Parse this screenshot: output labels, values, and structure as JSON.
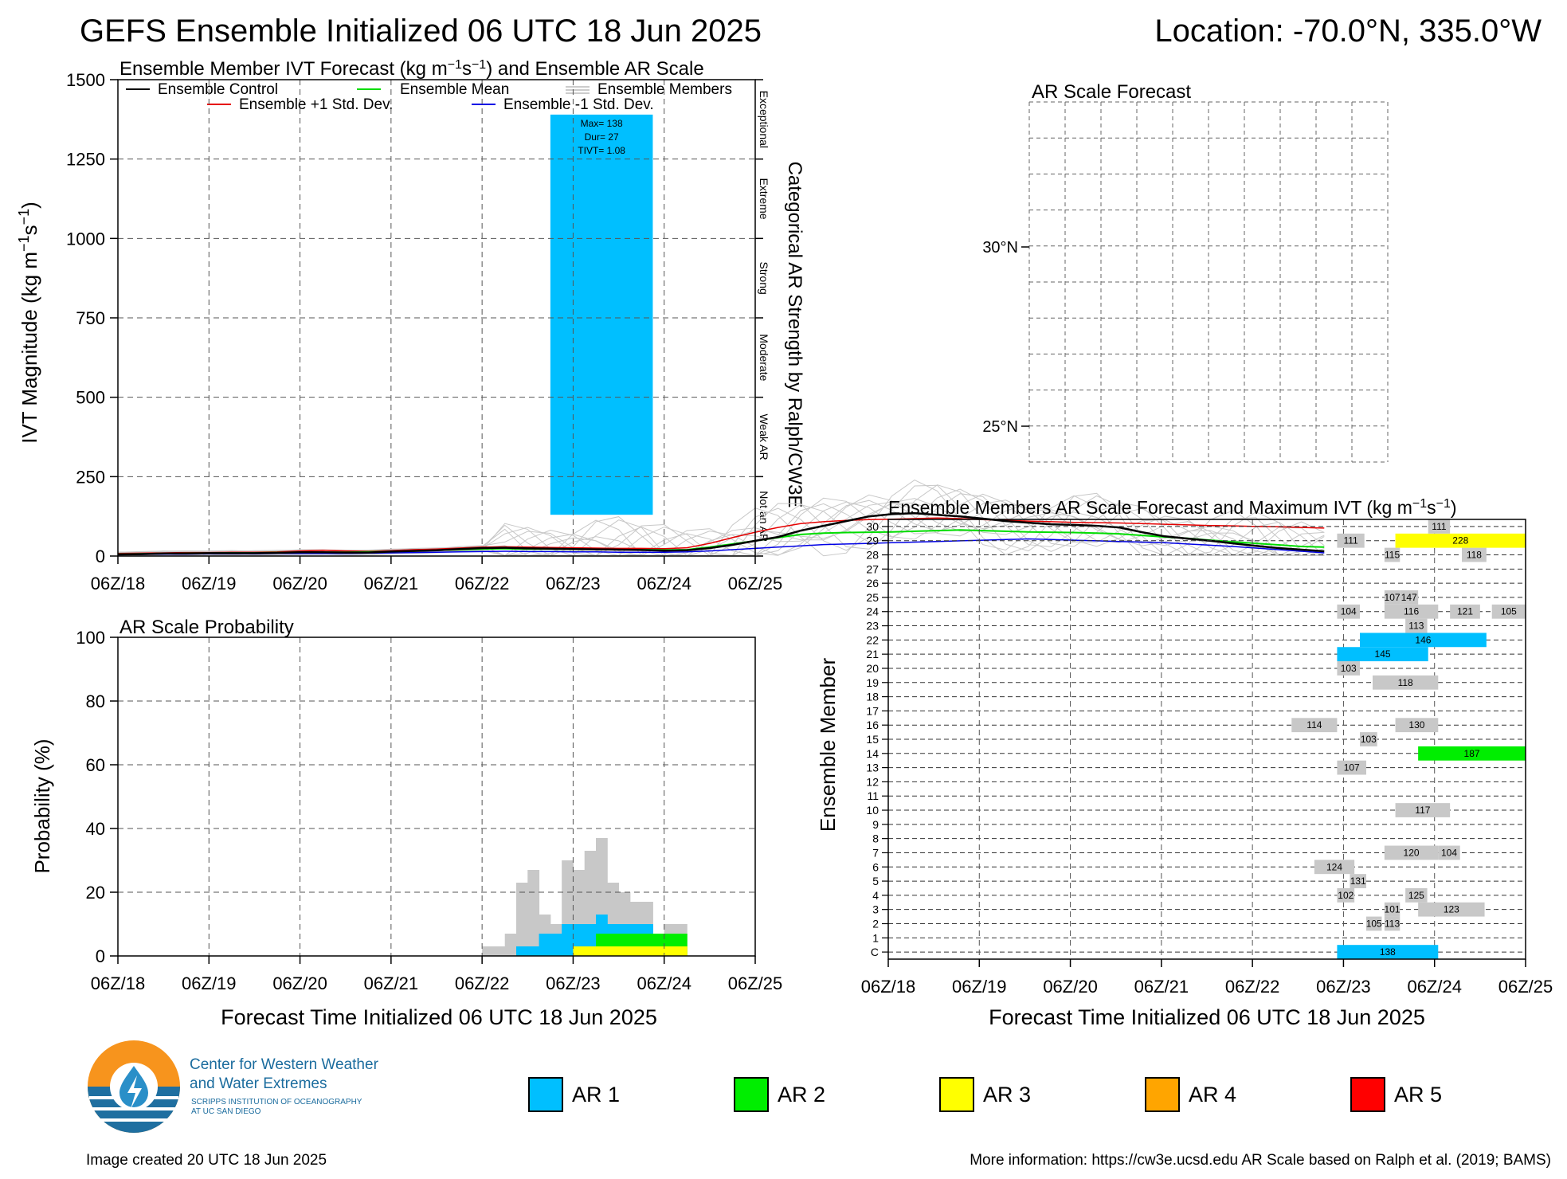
{
  "header": {
    "title": "GEFS Ensemble Initialized 06 UTC 18 Jun 2025",
    "location": "Location: -70.0°N, 335.0°W"
  },
  "colors": {
    "ar1": "#00bfff",
    "ar2": "#00ee00",
    "ar3": "#ffff00",
    "ar4": "#ffa500",
    "ar5": "#ff0000",
    "member_gray": "#c8c8c8",
    "control": "#000000",
    "mean": "#00dd00",
    "plus_std": "#e60000",
    "minus_std": "#0000e6"
  },
  "x_ticks": [
    "06Z/18",
    "06Z/19",
    "06Z/20",
    "06Z/21",
    "06Z/22",
    "06Z/23",
    "06Z/24",
    "06Z/25"
  ],
  "chart_data": [
    {
      "id": "ivt",
      "type": "line",
      "title": "Ensemble Member IVT Forecast (kg m⁻¹s⁻¹) and Ensemble AR Scale",
      "ylabel": "IVT Magnitude (kg m⁻¹s⁻¹)",
      "ylim": [
        0,
        1500
      ],
      "yticks": [
        "0",
        "250",
        "500",
        "750",
        "1000",
        "1250",
        "1500"
      ],
      "xlim_days": [
        0,
        7
      ],
      "right_label": "Categorical AR Strength by Ralph/CW3E",
      "categories_right": [
        "Not an AR",
        "Weak AR",
        "Moderate",
        "Strong",
        "Extreme",
        "Exceptional"
      ],
      "legend": {
        "control": "Ensemble Control",
        "mean": "Ensemble Mean",
        "members": "Ensemble Members",
        "plus": "Ensemble +1 Std. Dev.",
        "minus": "Ensemble -1 Std. Dev."
      },
      "ar_event": {
        "start": "06Z/22 + 18h",
        "end": "06Z/23 + 21h",
        "category": "AR 1",
        "top": 1390,
        "bottom": 130,
        "labels": [
          "Max= 138",
          "Dur= 27",
          "TIVT= 1.08"
        ]
      },
      "series": [
        {
          "name": "Ensemble Control",
          "x_step_hours": 6,
          "values": [
            5,
            6,
            8,
            8,
            9,
            9,
            9,
            10,
            12,
            12,
            11,
            11,
            14,
            16,
            18,
            22,
            25,
            26,
            24,
            23,
            22,
            21,
            20,
            19,
            17,
            18,
            25,
            35,
            48,
            60,
            80,
            95,
            110,
            125,
            132,
            135,
            130,
            125,
            118,
            110,
            105,
            100,
            98,
            95,
            90,
            75,
            62,
            55,
            48,
            40,
            32,
            25,
            20,
            15
          ]
        },
        {
          "name": "Ensemble Mean",
          "x_step_hours": 6,
          "values": [
            6,
            7,
            8,
            9,
            9,
            10,
            10,
            11,
            12,
            12,
            12,
            13,
            14,
            16,
            18,
            20,
            22,
            23,
            22,
            22,
            21,
            21,
            20,
            20,
            19,
            20,
            28,
            38,
            48,
            58,
            68,
            72,
            74,
            75,
            76,
            78,
            80,
            82,
            80,
            78,
            76,
            75,
            74,
            72,
            70,
            65,
            60,
            56,
            50,
            45,
            40,
            35,
            30,
            28
          ]
        },
        {
          "name": "Ensemble +1 Std. Dev.",
          "x_step_hours": 6,
          "values": [
            8,
            9,
            10,
            11,
            11,
            12,
            12,
            13,
            16,
            18,
            16,
            15,
            17,
            20,
            22,
            25,
            28,
            29,
            28,
            27,
            26,
            25,
            24,
            24,
            23,
            26,
            40,
            58,
            75,
            90,
            102,
            108,
            112,
            115,
            116,
            118,
            120,
            118,
            115,
            112,
            110,
            108,
            106,
            105,
            104,
            102,
            100,
            98,
            96,
            95,
            93,
            92,
            90,
            88
          ]
        },
        {
          "name": "Ensemble -1 Std. Dev.",
          "x_step_hours": 6,
          "values": [
            4,
            5,
            6,
            6,
            7,
            7,
            7,
            8,
            8,
            8,
            8,
            9,
            10,
            11,
            12,
            13,
            14,
            15,
            14,
            14,
            13,
            13,
            12,
            12,
            12,
            13,
            16,
            20,
            24,
            28,
            32,
            36,
            38,
            40,
            42,
            44,
            46,
            48,
            50,
            52,
            54,
            52,
            50,
            48,
            46,
            44,
            42,
            38,
            34,
            30,
            25,
            20,
            15,
            10
          ]
        }
      ]
    },
    {
      "id": "prob",
      "type": "area",
      "title": "AR Scale Probability",
      "ylabel": "Probability (%)",
      "xlabel": "Forecast Time Initialized 06 UTC 18 Jun 2025",
      "ylim": [
        0,
        100
      ],
      "yticks": [
        "0",
        "20",
        "40",
        "60",
        "80",
        "100"
      ],
      "x_start_hours": 96,
      "x_step_hours": 3,
      "series": [
        {
          "name": "any",
          "values": [
            3,
            3,
            7,
            23,
            27,
            13,
            10,
            30,
            27,
            33,
            37,
            23,
            20,
            17,
            17,
            0,
            10,
            10
          ]
        },
        {
          "name": "AR 1",
          "values": [
            0,
            0,
            0,
            3,
            3,
            7,
            7,
            10,
            10,
            10,
            13,
            10,
            10,
            10,
            10,
            0,
            0,
            0
          ]
        },
        {
          "name": "AR 2",
          "values": [
            0,
            0,
            0,
            0,
            0,
            0,
            0,
            0,
            0,
            0,
            7,
            7,
            7,
            7,
            7,
            7,
            7,
            7
          ]
        },
        {
          "name": "AR 3",
          "values": [
            0,
            0,
            0,
            0,
            0,
            0,
            0,
            0,
            3,
            3,
            3,
            3,
            3,
            3,
            3,
            3,
            3,
            3
          ]
        }
      ]
    },
    {
      "id": "map",
      "type": "map",
      "title": "AR Scale Forecast",
      "lat_labels": [
        "30°N",
        "25°N"
      ]
    },
    {
      "id": "members",
      "type": "heatmap",
      "title": "Ensemble Members AR Scale Forecast and Maximum IVT (kg m⁻¹s⁻¹)",
      "ylabel": "Ensemble Member",
      "xlabel": "Forecast Time Initialized 06 UTC 18 Jun 2025",
      "rows": [
        "C",
        "1",
        "2",
        "3",
        "4",
        "5",
        "6",
        "7",
        "8",
        "9",
        "10",
        "11",
        "12",
        "13",
        "14",
        "15",
        "16",
        "17",
        "18",
        "19",
        "20",
        "21",
        "22",
        "23",
        "24",
        "25",
        "26",
        "27",
        "28",
        "29",
        "30"
      ],
      "events": [
        {
          "row": "C",
          "start": 4.93,
          "end": 6.04,
          "cat": 1,
          "max": "138"
        },
        {
          "row": "2",
          "start": 5.25,
          "end": 5.42,
          "cat": 0,
          "max": "105"
        },
        {
          "row": "2",
          "start": 5.45,
          "end": 5.62,
          "cat": 0,
          "max": "113"
        },
        {
          "row": "3",
          "start": 5.45,
          "end": 5.62,
          "cat": 0,
          "max": "101"
        },
        {
          "row": "3",
          "start": 5.82,
          "end": 6.55,
          "cat": 0,
          "max": "123"
        },
        {
          "row": "4",
          "start": 4.93,
          "end": 5.12,
          "cat": 0,
          "max": "102"
        },
        {
          "row": "4",
          "start": 5.68,
          "end": 5.92,
          "cat": 0,
          "max": "125"
        },
        {
          "row": "5",
          "start": 5.07,
          "end": 5.25,
          "cat": 0,
          "max": "131"
        },
        {
          "row": "6",
          "start": 4.68,
          "end": 5.12,
          "cat": 0,
          "max": "124"
        },
        {
          "row": "7",
          "start": 5.45,
          "end": 6.04,
          "cat": 0,
          "max": "120"
        },
        {
          "row": "7",
          "start": 6.04,
          "end": 6.28,
          "cat": 0,
          "max": "104"
        },
        {
          "row": "10",
          "start": 5.57,
          "end": 6.17,
          "cat": 0,
          "max": "117"
        },
        {
          "row": "13",
          "start": 4.93,
          "end": 5.25,
          "cat": 0,
          "max": "107"
        },
        {
          "row": "14",
          "start": 5.82,
          "end": 7.0,
          "cat": 2,
          "max": "187"
        },
        {
          "row": "15",
          "start": 5.18,
          "end": 5.37,
          "cat": 0,
          "max": "103"
        },
        {
          "row": "16",
          "start": 4.43,
          "end": 4.93,
          "cat": 0,
          "max": "114"
        },
        {
          "row": "16",
          "start": 5.57,
          "end": 6.04,
          "cat": 0,
          "max": "130"
        },
        {
          "row": "19",
          "start": 5.32,
          "end": 6.04,
          "cat": 0,
          "max": "118"
        },
        {
          "row": "20",
          "start": 4.93,
          "end": 5.18,
          "cat": 0,
          "max": "103"
        },
        {
          "row": "21",
          "start": 4.93,
          "end": 5.93,
          "cat": 1,
          "max": "145"
        },
        {
          "row": "22",
          "start": 5.18,
          "end": 6.57,
          "cat": 1,
          "max": "146"
        },
        {
          "row": "23",
          "start": 5.68,
          "end": 5.92,
          "cat": 0,
          "max": "113"
        },
        {
          "row": "24",
          "start": 4.93,
          "end": 5.18,
          "cat": 0,
          "max": "104"
        },
        {
          "row": "24",
          "start": 5.45,
          "end": 6.04,
          "cat": 0,
          "max": "116"
        },
        {
          "row": "24",
          "start": 6.17,
          "end": 6.5,
          "cat": 0,
          "max": "121"
        },
        {
          "row": "24",
          "start": 6.63,
          "end": 7.0,
          "cat": 0,
          "max": "105"
        },
        {
          "row": "25",
          "start": 5.45,
          "end": 5.62,
          "cat": 0,
          "max": "107"
        },
        {
          "row": "25",
          "start": 5.62,
          "end": 5.82,
          "cat": 0,
          "max": "147"
        },
        {
          "row": "28",
          "start": 5.45,
          "end": 5.62,
          "cat": 0,
          "max": "115"
        },
        {
          "row": "28",
          "start": 6.3,
          "end": 6.57,
          "cat": 0,
          "max": "118"
        },
        {
          "row": "29",
          "start": 4.93,
          "end": 5.23,
          "cat": 0,
          "max": "111"
        },
        {
          "row": "29",
          "start": 5.57,
          "end": 7.0,
          "cat": 3,
          "max": "228"
        },
        {
          "row": "30",
          "start": 5.93,
          "end": 6.17,
          "cat": 0,
          "max": "111"
        }
      ]
    }
  ],
  "legend": {
    "items": [
      {
        "label": "AR 1",
        "color": "#00bfff"
      },
      {
        "label": "AR 2",
        "color": "#00ee00"
      },
      {
        "label": "AR 3",
        "color": "#ffff00"
      },
      {
        "label": "AR 4",
        "color": "#ffa500"
      },
      {
        "label": "AR 5",
        "color": "#ff0000"
      }
    ]
  },
  "logo": {
    "line1": "Center for Western Weather",
    "line2": "and Water Extremes",
    "line3": "SCRIPPS INSTITUTION OF OCEANOGRAPHY",
    "line4": "AT UC SAN DIEGO"
  },
  "footer": {
    "created": "Image created 20 UTC 18 Jun 2025",
    "info": "More information: https://cw3e.ucsd.edu AR Scale based on Ralph et al. (2019; BAMS)"
  }
}
